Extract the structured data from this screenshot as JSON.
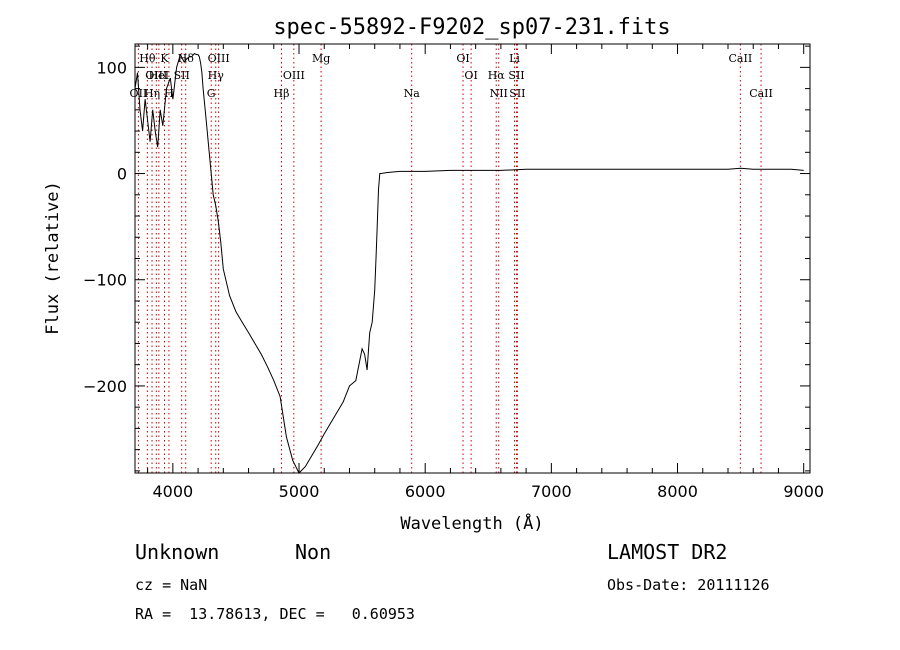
{
  "chart_data": {
    "type": "line",
    "title": "spec-55892-F9202_sp07-231.fits",
    "xlabel": "Wavelength (Å)",
    "ylabel": "Flux (relative)",
    "xlim": [
      3700,
      9050
    ],
    "ylim": [
      -282,
      122
    ],
    "xticks": [
      4000,
      5000,
      6000,
      7000,
      8000,
      9000
    ],
    "yticks": [
      -200,
      -100,
      0,
      100
    ],
    "grid": false,
    "series": [
      {
        "x": [
          3700,
          3720,
          3740,
          3760,
          3780,
          3800,
          3820,
          3840,
          3860,
          3880,
          3900,
          3920,
          3950,
          3980,
          4000,
          4030,
          4060,
          4090,
          4110,
          4130,
          4150,
          4170,
          4190,
          4200,
          4210,
          4220,
          4230,
          4240,
          4260,
          4280,
          4300,
          4320,
          4340,
          4360,
          4380,
          4400,
          4450,
          4500,
          4550,
          4600,
          4650,
          4700,
          4750,
          4800,
          4850,
          4870,
          4900,
          4950,
          5000,
          5050,
          5100,
          5150,
          5200,
          5250,
          5300,
          5350,
          5400,
          5450,
          5500,
          5520,
          5540,
          5560,
          5580,
          5600,
          5610,
          5620,
          5630,
          5640,
          5650,
          5700,
          5800,
          5900,
          6000,
          6200,
          6400,
          6600,
          6800,
          7000,
          7200,
          7400,
          7600,
          7800,
          8000,
          8200,
          8400,
          8500,
          8600,
          8800,
          8900,
          9000
        ],
        "values": [
          80,
          95,
          60,
          40,
          70,
          50,
          30,
          60,
          40,
          25,
          60,
          45,
          80,
          90,
          70,
          100,
          112,
          105,
          108,
          110,
          110,
          113,
          112,
          112,
          110,
          104,
          95,
          80,
          55,
          30,
          5,
          -20,
          -30,
          -45,
          -65,
          -90,
          -115,
          -130,
          -140,
          -150,
          -160,
          -170,
          -182,
          -195,
          -210,
          -225,
          -248,
          -270,
          -282,
          -276,
          -266,
          -256,
          -245,
          -235,
          -225,
          -215,
          -200,
          -195,
          -165,
          -170,
          -185,
          -150,
          -140,
          -110,
          -80,
          -50,
          -15,
          0,
          0,
          1,
          2,
          2,
          2,
          3,
          3,
          3,
          4,
          4,
          4,
          4,
          4,
          4,
          4,
          4,
          4,
          5,
          4,
          4,
          4,
          3
        ]
      }
    ],
    "spectral_lines": [
      {
        "name": "OII",
        "wavelength": 3727,
        "row": 3
      },
      {
        "name": "Hθ",
        "wavelength": 3798,
        "row": 1
      },
      {
        "name": "OIII",
        "wavelength": 3869,
        "row": 2
      },
      {
        "name": "Hη",
        "wavelength": 3835,
        "row": 3
      },
      {
        "name": "K",
        "wavelength": 3934,
        "row": 1
      },
      {
        "name": "HeI",
        "wavelength": 3889,
        "row": 2
      },
      {
        "name": "H",
        "wavelength": 3969,
        "row": 3
      },
      {
        "name": "SII",
        "wavelength": 4070,
        "row": 2
      },
      {
        "name": "Hδ",
        "wavelength": 4102,
        "row": 1
      },
      {
        "name": "OIII",
        "wavelength": 4363,
        "row": 1
      },
      {
        "name": "Hγ",
        "wavelength": 4340,
        "row": 2
      },
      {
        "name": "G",
        "wavelength": 4304,
        "row": 3
      },
      {
        "name": "OIII",
        "wavelength": 4959,
        "row": 2
      },
      {
        "name": "Hβ",
        "wavelength": 4861,
        "row": 3
      },
      {
        "name": "Mg",
        "wavelength": 5175,
        "row": 1
      },
      {
        "name": "Na",
        "wavelength": 5893,
        "row": 3
      },
      {
        "name": "OI",
        "wavelength": 6300,
        "row": 1
      },
      {
        "name": "OI",
        "wavelength": 6364,
        "row": 2
      },
      {
        "name": "Hα",
        "wavelength": 6563,
        "row": 2
      },
      {
        "name": "NII",
        "wavelength": 6583,
        "row": 3
      },
      {
        "name": "Li",
        "wavelength": 6708,
        "row": 1
      },
      {
        "name": "SII",
        "wavelength": 6724,
        "row": 2
      },
      {
        "name": "SII",
        "wavelength": 6731,
        "row": 3
      },
      {
        "name": "CaII",
        "wavelength": 8498,
        "row": 1
      },
      {
        "name": "CaII",
        "wavelength": 8662,
        "row": 3
      }
    ],
    "line_color": "#000000",
    "marker_color": "#cc0000"
  },
  "footer": {
    "class_label": "Unknown",
    "subclass_label": "Non",
    "survey_label": "LAMOST DR2",
    "cz_text": "cz = NaN",
    "obs_date_text": "Obs-Date: 20111126",
    "coords_text": "RA =  13.78613, DEC =   0.60953"
  }
}
